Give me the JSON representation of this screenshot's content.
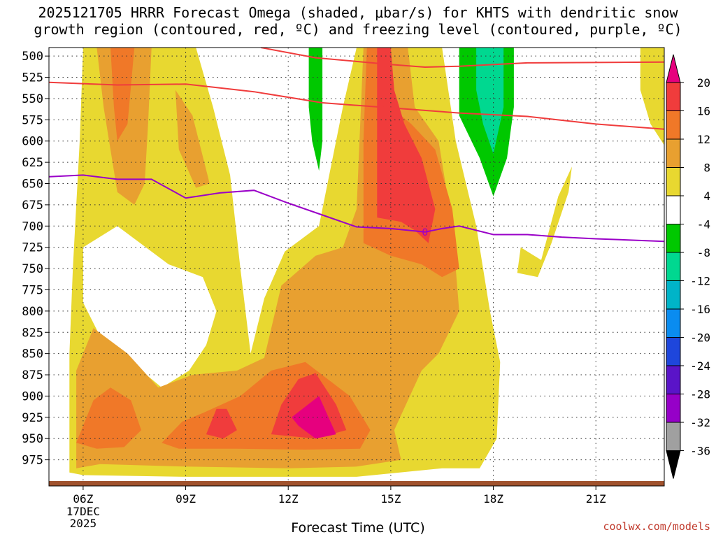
{
  "title_line1": "2025121705 HRRR Forecast Omega (shaded, μbar/s) for KHTS with dendritic snow",
  "title_line2": "growth region (contoured, red, ºC) and freezing level (contoured, purple, ºC)",
  "x_axis_title": "Forecast Time (UTC)",
  "credit": "coolwx.com/models",
  "date_label": [
    "17DEC",
    "2025"
  ],
  "freezing_label": "0",
  "colors": {
    "ge16": "#f03c3c",
    "12to16": "#f07828",
    "8to12": "#e8a030",
    "4to8": "#e8d830",
    "m4to4": "#ffffff",
    "m8tom4": "#00c800",
    "m12tom8": "#00d890",
    "m16tom12": "#00b4c8",
    "m20tom16": "#0a8cf0",
    "m24tom20": "#1e46dc",
    "m28tom24": "#5a14c8",
    "m32tom28": "#9600c8",
    "m36tom32": "#a0a0a0",
    "below": "#000000",
    "above": "#e6007e",
    "dendritic": "#f03c3c",
    "freezing": "#9a00c8",
    "ground": "#a0522d"
  },
  "chart_data": {
    "type": "heatmap",
    "title": "2025121705 HRRR Forecast Omega (shaded, μbar/s) for KHTS with dendritic snow growth region (contoured, red, ºC) and freezing level (contoured, purple, ºC)",
    "xlabel": "Forecast Time (UTC)",
    "ylabel": "",
    "x_ticks": [
      "06Z",
      "09Z",
      "12Z",
      "15Z",
      "18Z",
      "21Z"
    ],
    "y_ticks": [
      500,
      525,
      550,
      575,
      600,
      625,
      650,
      675,
      700,
      725,
      750,
      775,
      800,
      825,
      850,
      875,
      900,
      925,
      950,
      975
    ],
    "x_range_hours": [
      5,
      23
    ],
    "y_range_hPa": [
      490,
      1000
    ],
    "grid": true,
    "colorbar": {
      "labels": [
        "20",
        "16",
        "12",
        "8",
        "4",
        "-4",
        "-8",
        "-12",
        "-16",
        "-20",
        "-24",
        "-28",
        "-32",
        "-36"
      ],
      "bands": [
        {
          "range": "16 to 20",
          "color": "#f03c3c"
        },
        {
          "range": "12 to 16",
          "color": "#f07828"
        },
        {
          "range": "8 to 12",
          "color": "#e8a030"
        },
        {
          "range": "4 to 8",
          "color": "#e8d830"
        },
        {
          "range": "-4 to 4",
          "color": "#ffffff"
        },
        {
          "range": "-8 to -4",
          "color": "#00c800"
        },
        {
          "range": "-12 to -8",
          "color": "#00d890"
        },
        {
          "range": "-16 to -12",
          "color": "#00b4c8"
        },
        {
          "range": "-20 to -16",
          "color": "#0a8cf0"
        },
        {
          "range": "-24 to -20",
          "color": "#1e46dc"
        },
        {
          "range": "-28 to -24",
          "color": "#5a14c8"
        },
        {
          "range": "-32 to -28",
          "color": "#9600c8"
        },
        {
          "range": "-36 to -32",
          "color": "#a0a0a0"
        }
      ]
    },
    "shaded_regions": [
      {
        "level": "4to8",
        "points": [
          [
            5.6,
            990
          ],
          [
            5.6,
            850
          ],
          [
            5.7,
            750
          ],
          [
            5.9,
            600
          ],
          [
            6.0,
            490
          ],
          [
            9.3,
            490
          ],
          [
            9.8,
            560
          ],
          [
            10.3,
            640
          ],
          [
            10.6,
            750
          ],
          [
            10.9,
            850
          ],
          [
            11.3,
            785
          ],
          [
            11.9,
            730
          ],
          [
            12.9,
            700
          ],
          [
            13.6,
            560
          ],
          [
            14.0,
            490
          ],
          [
            16.5,
            490
          ],
          [
            16.9,
            600
          ],
          [
            17.5,
            700
          ],
          [
            17.9,
            800
          ],
          [
            18.2,
            860
          ],
          [
            18.1,
            950
          ],
          [
            17.6,
            985
          ],
          [
            16.5,
            985
          ],
          [
            14.0,
            995
          ],
          [
            12.0,
            995
          ],
          [
            9.0,
            995
          ],
          [
            6.0,
            993
          ]
        ]
      },
      {
        "level": "4to8",
        "points": [
          [
            19.4,
            740
          ],
          [
            19.9,
            665
          ],
          [
            20.3,
            630
          ],
          [
            20.2,
            660
          ],
          [
            19.7,
            720
          ],
          [
            19.3,
            760
          ],
          [
            18.7,
            755
          ],
          [
            18.8,
            725
          ]
        ]
      },
      {
        "level": "4to8",
        "points": [
          [
            22.3,
            490
          ],
          [
            23.0,
            490
          ],
          [
            23.0,
            605
          ],
          [
            22.6,
            580
          ],
          [
            22.3,
            540
          ]
        ]
      },
      {
        "level": "4to8",
        "points": [
          [
            16.0,
            880
          ],
          [
            16.3,
            872
          ],
          [
            16.2,
            900
          ],
          [
            15.8,
            918
          ],
          [
            15.6,
            905
          ]
        ]
      },
      {
        "level": "m4to4",
        "points": [
          [
            6.0,
            725
          ],
          [
            7.0,
            700
          ],
          [
            8.5,
            745
          ],
          [
            9.5,
            760
          ],
          [
            9.9,
            800
          ],
          [
            9.6,
            840
          ],
          [
            9.1,
            870
          ],
          [
            8.3,
            890
          ],
          [
            7.4,
            860
          ],
          [
            6.5,
            830
          ],
          [
            6.0,
            790
          ]
        ]
      },
      {
        "level": "8to12",
        "points": [
          [
            6.4,
            490
          ],
          [
            8.0,
            490
          ],
          [
            7.9,
            580
          ],
          [
            7.8,
            650
          ],
          [
            7.5,
            675
          ],
          [
            7.0,
            660
          ],
          [
            6.6,
            560
          ]
        ]
      },
      {
        "level": "8to12",
        "points": [
          [
            8.7,
            540
          ],
          [
            9.2,
            570
          ],
          [
            9.7,
            650
          ],
          [
            9.3,
            655
          ],
          [
            8.8,
            610
          ]
        ]
      },
      {
        "level": "8to12",
        "points": [
          [
            5.8,
            985
          ],
          [
            5.8,
            870
          ],
          [
            6.3,
            820
          ],
          [
            7.3,
            850
          ],
          [
            8.2,
            890
          ],
          [
            9.2,
            875
          ],
          [
            10.5,
            870
          ],
          [
            11.3,
            855
          ],
          [
            11.8,
            770
          ],
          [
            12.8,
            735
          ],
          [
            13.6,
            725
          ],
          [
            14.0,
            680
          ],
          [
            14.2,
            490
          ],
          [
            15.5,
            490
          ],
          [
            15.7,
            560
          ],
          [
            16.4,
            600
          ],
          [
            16.8,
            700
          ],
          [
            17.0,
            800
          ],
          [
            16.4,
            850
          ],
          [
            15.9,
            870
          ],
          [
            15.1,
            940
          ],
          [
            15.3,
            975
          ],
          [
            14.0,
            983
          ],
          [
            12.0,
            985
          ],
          [
            9.0,
            983
          ],
          [
            6.5,
            980
          ]
        ]
      },
      {
        "level": "12to16",
        "points": [
          [
            6.8,
            490
          ],
          [
            7.5,
            490
          ],
          [
            7.3,
            580
          ],
          [
            7.0,
            600
          ],
          [
            6.9,
            560
          ]
        ]
      },
      {
        "level": "12to16",
        "points": [
          [
            14.3,
            490
          ],
          [
            15.0,
            490
          ],
          [
            15.0,
            560
          ],
          [
            15.6,
            580
          ],
          [
            16.3,
            610
          ],
          [
            16.8,
            680
          ],
          [
            17.0,
            750
          ],
          [
            16.5,
            760
          ],
          [
            15.9,
            745
          ],
          [
            15.0,
            735
          ],
          [
            14.2,
            720
          ],
          [
            14.2,
            600
          ]
        ]
      },
      {
        "level": "12to16",
        "points": [
          [
            5.8,
            955
          ],
          [
            6.3,
            905
          ],
          [
            6.8,
            890
          ],
          [
            7.4,
            905
          ],
          [
            7.7,
            940
          ],
          [
            7.2,
            960
          ],
          [
            6.4,
            962
          ]
        ]
      },
      {
        "level": "12to16",
        "points": [
          [
            8.3,
            955
          ],
          [
            8.9,
            930
          ],
          [
            9.5,
            920
          ],
          [
            10.6,
            900
          ],
          [
            11.5,
            870
          ],
          [
            12.5,
            860
          ],
          [
            13.8,
            900
          ],
          [
            14.4,
            940
          ],
          [
            14.1,
            962
          ],
          [
            12.5,
            963
          ],
          [
            10.5,
            962
          ],
          [
            8.8,
            962
          ]
        ]
      },
      {
        "level": "ge16",
        "points": [
          [
            14.6,
            490
          ],
          [
            15.0,
            490
          ],
          [
            15.1,
            540
          ],
          [
            15.4,
            580
          ],
          [
            15.9,
            620
          ],
          [
            16.3,
            680
          ],
          [
            16.1,
            720
          ],
          [
            15.7,
            705
          ],
          [
            15.3,
            695
          ],
          [
            14.6,
            690
          ],
          [
            14.6,
            600
          ]
        ]
      },
      {
        "level": "ge16",
        "points": [
          [
            9.6,
            945
          ],
          [
            9.9,
            915
          ],
          [
            10.2,
            915
          ],
          [
            10.5,
            940
          ],
          [
            10.1,
            950
          ]
        ]
      },
      {
        "level": "ge16",
        "points": [
          [
            11.5,
            945
          ],
          [
            11.8,
            910
          ],
          [
            12.3,
            880
          ],
          [
            12.8,
            873
          ],
          [
            13.4,
            910
          ],
          [
            13.7,
            940
          ],
          [
            12.8,
            950
          ]
        ]
      },
      {
        "level": "above",
        "points": [
          [
            12.1,
            925
          ],
          [
            12.9,
            900
          ],
          [
            13.4,
            945
          ],
          [
            12.8,
            950
          ],
          [
            12.3,
            935
          ]
        ]
      },
      {
        "level": "m8tom4",
        "points": [
          [
            12.6,
            490
          ],
          [
            13.0,
            490
          ],
          [
            13.0,
            600
          ],
          [
            12.9,
            635
          ],
          [
            12.7,
            600
          ],
          [
            12.6,
            560
          ]
        ]
      },
      {
        "level": "m8tom4",
        "points": [
          [
            17.0,
            490
          ],
          [
            18.6,
            490
          ],
          [
            18.6,
            560
          ],
          [
            18.4,
            620
          ],
          [
            18.0,
            665
          ],
          [
            17.6,
            620
          ],
          [
            17.0,
            570
          ]
        ]
      },
      {
        "level": "m12tom8",
        "points": [
          [
            17.5,
            490
          ],
          [
            18.3,
            490
          ],
          [
            18.3,
            560
          ],
          [
            18.0,
            615
          ],
          [
            17.7,
            580
          ],
          [
            17.5,
            540
          ]
        ]
      }
    ],
    "dendritic_upper": {
      "name": "",
      "x": [
        11.2,
        12.8,
        15.0,
        16.0,
        17.0,
        19.0,
        23.0
      ],
      "y": [
        490,
        502,
        510,
        513,
        512,
        508,
        507
      ]
    },
    "dendritic_lower": {
      "name": "",
      "x": [
        5.0,
        7.0,
        9.0,
        11.0,
        13.0,
        15.0,
        17.0,
        19.0,
        21.0,
        23.0
      ],
      "y": [
        531,
        534,
        533,
        542,
        555,
        561,
        567,
        571,
        580,
        586
      ]
    },
    "freezing_level": {
      "name": "",
      "x": [
        5.0,
        6.0,
        7.0,
        8.0,
        9.0,
        10.0,
        11.0,
        12.0,
        13.0,
        14.0,
        15.0,
        16.0,
        16.5,
        17.0,
        18.0,
        19.0,
        20.0,
        21.0,
        23.0
      ],
      "y": [
        642,
        640,
        645,
        645,
        667,
        661,
        658,
        673,
        687,
        701,
        703,
        707,
        703,
        700,
        710,
        710,
        713,
        715,
        718
      ]
    }
  }
}
